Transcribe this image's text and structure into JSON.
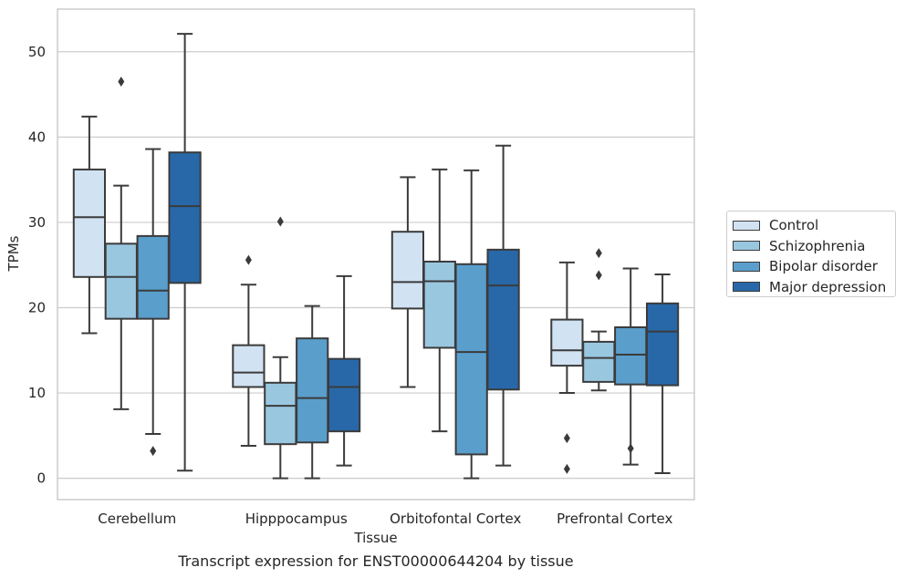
{
  "chart_data": {
    "type": "box",
    "xlabel": "Tissue",
    "ylabel": "TPMs",
    "caption": "Transcript expression for ENST00000644204 by tissue",
    "ylim": [
      -2.5,
      55
    ],
    "yticks": [
      0,
      10,
      20,
      30,
      40,
      50
    ],
    "grid": "horizontal",
    "legend_position": "right",
    "categories": [
      "Cerebellum",
      "Hipppocampus",
      "Orbitofontal Cortex",
      "Prefrontal Cortex"
    ],
    "series": [
      {
        "name": "Control",
        "color": "#d1e2f2",
        "boxes": [
          {
            "min": 17.0,
            "q1": 23.6,
            "median": 30.6,
            "q3": 36.2,
            "max": 42.4,
            "outliers": []
          },
          {
            "min": 3.8,
            "q1": 10.7,
            "median": 12.4,
            "q3": 15.6,
            "max": 22.7,
            "outliers": [
              25.6
            ]
          },
          {
            "min": 10.7,
            "q1": 19.9,
            "median": 23.0,
            "q3": 28.9,
            "max": 35.3,
            "outliers": []
          },
          {
            "min": 10.0,
            "q1": 13.2,
            "median": 15.0,
            "q3": 18.6,
            "max": 25.3,
            "outliers": [
              4.7,
              1.1
            ]
          }
        ]
      },
      {
        "name": "Schizophrenia",
        "color": "#9ac7e0",
        "boxes": [
          {
            "min": 8.1,
            "q1": 18.7,
            "median": 23.6,
            "q3": 27.5,
            "max": 34.3,
            "outliers": [
              46.5
            ]
          },
          {
            "min": 0.0,
            "q1": 4.0,
            "median": 8.5,
            "q3": 11.2,
            "max": 14.2,
            "outliers": [
              30.1
            ]
          },
          {
            "min": 5.5,
            "q1": 15.3,
            "median": 23.1,
            "q3": 25.4,
            "max": 36.2,
            "outliers": []
          },
          {
            "min": 10.3,
            "q1": 11.3,
            "median": 14.1,
            "q3": 16.0,
            "max": 17.2,
            "outliers": [
              26.4,
              23.8
            ]
          }
        ]
      },
      {
        "name": "Bipolar disorder",
        "color": "#5a9ecc",
        "boxes": [
          {
            "min": 5.2,
            "q1": 18.7,
            "median": 22.0,
            "q3": 28.4,
            "max": 38.6,
            "outliers": [
              3.2
            ]
          },
          {
            "min": 0.0,
            "q1": 4.2,
            "median": 9.4,
            "q3": 16.4,
            "max": 20.2,
            "outliers": []
          },
          {
            "min": 0.0,
            "q1": 2.8,
            "median": 14.8,
            "q3": 25.1,
            "max": 36.1,
            "outliers": []
          },
          {
            "min": 1.6,
            "q1": 11.0,
            "median": 14.5,
            "q3": 17.7,
            "max": 24.6,
            "outliers": [
              3.5
            ]
          }
        ]
      },
      {
        "name": "Major depression",
        "color": "#2868a8",
        "boxes": [
          {
            "min": 0.9,
            "q1": 22.9,
            "median": 31.9,
            "q3": 38.2,
            "max": 52.1,
            "outliers": []
          },
          {
            "min": 1.5,
            "q1": 5.5,
            "median": 10.7,
            "q3": 14.0,
            "max": 23.7,
            "outliers": []
          },
          {
            "min": 1.5,
            "q1": 10.4,
            "median": 22.6,
            "q3": 26.8,
            "max": 39.0,
            "outliers": []
          },
          {
            "min": 0.6,
            "q1": 10.9,
            "median": 17.2,
            "q3": 20.5,
            "max": 23.9,
            "outliers": []
          }
        ]
      }
    ]
  }
}
